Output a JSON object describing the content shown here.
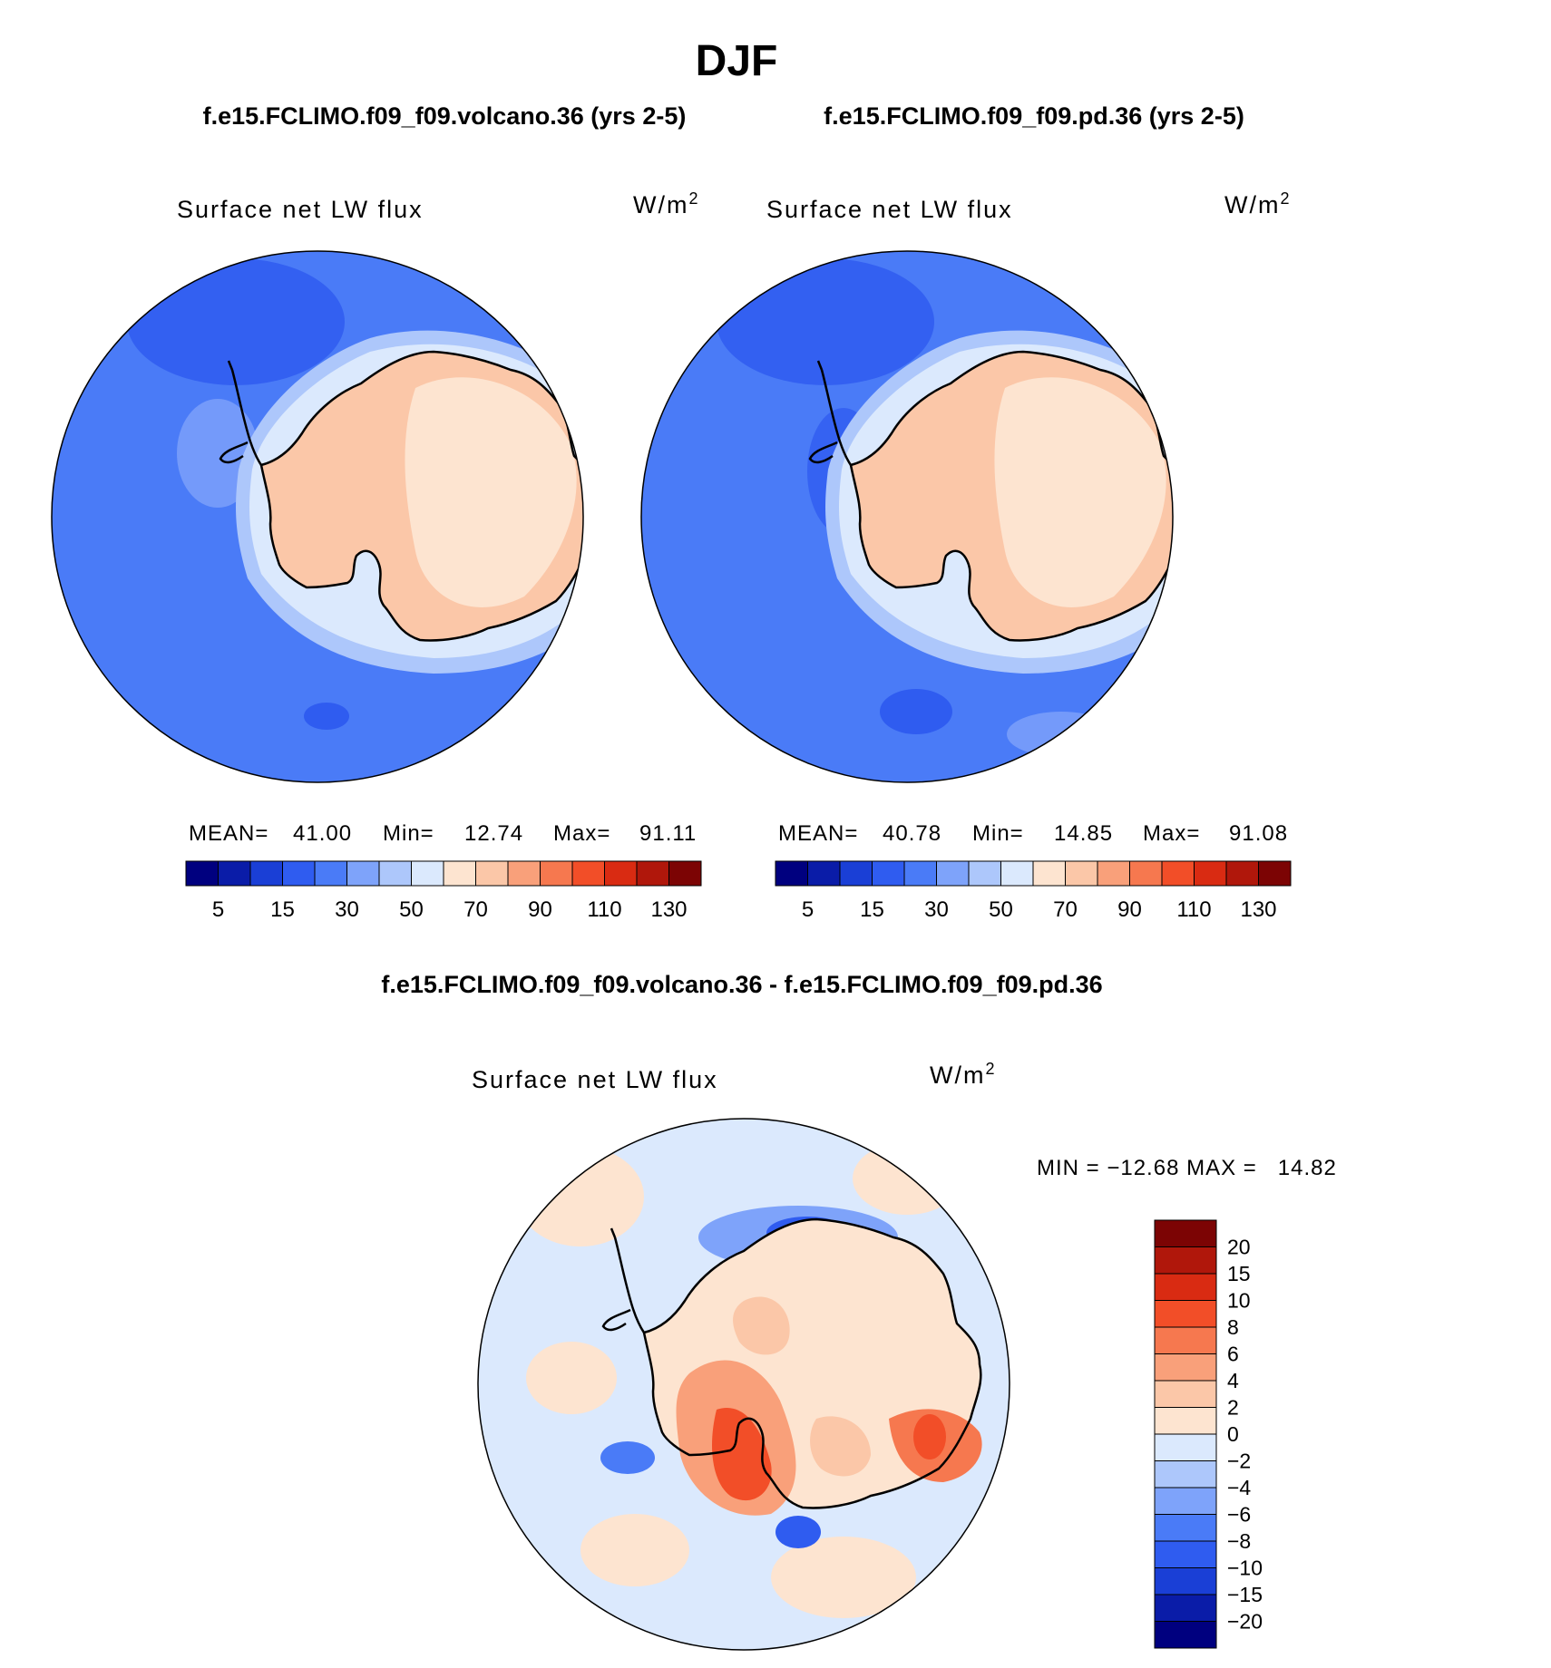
{
  "season": "DJF",
  "panels": [
    {
      "case_title": "f.e15.FCLIMO.f09_f09.volcano.36 (yrs 2-5)",
      "variable": "Surface net LW flux",
      "units": "W/m",
      "units_exp": "2",
      "stats": {
        "mean_label": "MEAN=",
        "mean": "41.00",
        "min_label": "Min=",
        "min": "12.74",
        "max_label": "Max=",
        "max": "91.11"
      }
    },
    {
      "case_title": "f.e15.FCLIMO.f09_f09.pd.36 (yrs 2-5)",
      "variable": "Surface net LW flux",
      "units": "W/m",
      "units_exp": "2",
      "stats": {
        "mean_label": "MEAN=",
        "mean": "40.78",
        "min_label": "Min=",
        "min": "14.85",
        "max_label": "Max=",
        "max": "91.08"
      }
    }
  ],
  "diff": {
    "title": "f.e15.FCLIMO.f09_f09.volcano.36 - f.e15.FCLIMO.f09_f09.pd.36",
    "variable": "Surface net LW flux",
    "units": "W/m",
    "units_exp": "2",
    "minmax": "MIN = −12.68 MAX =   14.82"
  },
  "colorbar_h": {
    "colors": [
      "#00007f",
      "#0a1ca8",
      "#1a3fd6",
      "#2f5cf0",
      "#4a7bf7",
      "#7ea3fa",
      "#adc7fb",
      "#dbe9fd",
      "#fde4d0",
      "#fbc7a8",
      "#f9a07a",
      "#f6784f",
      "#f24e28",
      "#d92b12",
      "#b0170b",
      "#7c0404"
    ],
    "labels": [
      "5",
      "15",
      "30",
      "50",
      "70",
      "90",
      "110",
      "130"
    ]
  },
  "colorbar_v": {
    "colors": [
      "#7c0404",
      "#b0170b",
      "#d92b12",
      "#f24e28",
      "#f6784f",
      "#f9a07a",
      "#fbc7a8",
      "#fde4d0",
      "#dbe9fd",
      "#adc7fb",
      "#7ea3fa",
      "#4a7bf7",
      "#2f5cf0",
      "#1a3fd6",
      "#0a1ca8",
      "#00007f"
    ],
    "labels": [
      "20",
      "15",
      "10",
      "8",
      "6",
      "4",
      "2",
      "0",
      "−2",
      "−4",
      "−6",
      "−8",
      "−10",
      "−15",
      "−20"
    ]
  }
}
